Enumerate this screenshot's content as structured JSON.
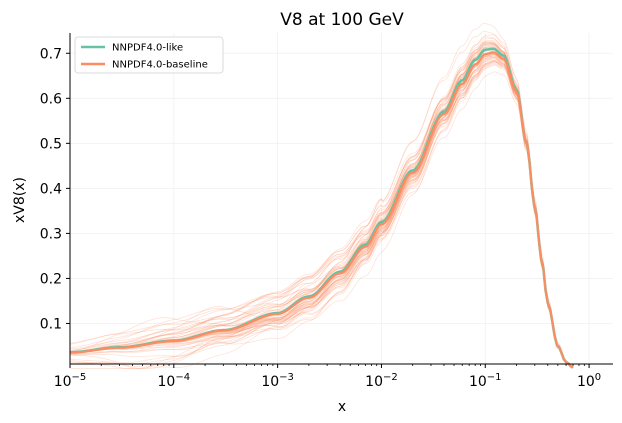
{
  "chart_data": {
    "type": "line",
    "title": "V8 at 100 GeV",
    "xlabel": "x",
    "ylabel": "xV8(x)",
    "xscale": "log",
    "xlim": [
      1e-05,
      1.7
    ],
    "ylim": [
      0.01,
      0.745
    ],
    "grid": "faint",
    "legend_position": "top-left",
    "x_ticks": [
      {
        "value": 1e-05,
        "base": "10",
        "exp": "−5"
      },
      {
        "value": 0.0001,
        "base": "10",
        "exp": "−4"
      },
      {
        "value": 0.001,
        "base": "10",
        "exp": "−3"
      },
      {
        "value": 0.01,
        "base": "10",
        "exp": "−2"
      },
      {
        "value": 0.1,
        "base": "10",
        "exp": "−1"
      },
      {
        "value": 1,
        "base": "10",
        "exp": "0"
      }
    ],
    "y_ticks": [
      {
        "value": 0.1,
        "label": "0.1"
      },
      {
        "value": 0.2,
        "label": "0.2"
      },
      {
        "value": 0.3,
        "label": "0.3"
      },
      {
        "value": 0.4,
        "label": "0.4"
      },
      {
        "value": 0.5,
        "label": "0.5"
      },
      {
        "value": 0.6,
        "label": "0.6"
      },
      {
        "value": 0.7,
        "label": "0.7"
      }
    ],
    "x": [
      1e-05,
      3e-05,
      0.0001,
      0.0003,
      0.001,
      0.002,
      0.004,
      0.007,
      0.01,
      0.02,
      0.04,
      0.06,
      0.08,
      0.1,
      0.12,
      0.15,
      0.2,
      0.25,
      0.3,
      0.35,
      0.4,
      0.5,
      0.6,
      0.7
    ],
    "series": [
      {
        "name": "NNPDF4.0-like",
        "color": "#66c2a5",
        "values": [
          0.036,
          0.047,
          0.062,
          0.085,
          0.123,
          0.16,
          0.215,
          0.275,
          0.325,
          0.44,
          0.57,
          0.64,
          0.685,
          0.708,
          0.71,
          0.695,
          0.62,
          0.5,
          0.36,
          0.24,
          0.145,
          0.05,
          0.014,
          0.002
        ]
      },
      {
        "name": "NNPDF4.0-baseline",
        "color": "#fc8d62",
        "values": [
          0.035,
          0.046,
          0.061,
          0.084,
          0.121,
          0.157,
          0.211,
          0.27,
          0.32,
          0.435,
          0.565,
          0.632,
          0.675,
          0.698,
          0.702,
          0.688,
          0.615,
          0.5,
          0.36,
          0.24,
          0.145,
          0.05,
          0.014,
          0.002
        ]
      }
    ],
    "replicas": {
      "color": "#fc8d62",
      "count": 60
    }
  }
}
